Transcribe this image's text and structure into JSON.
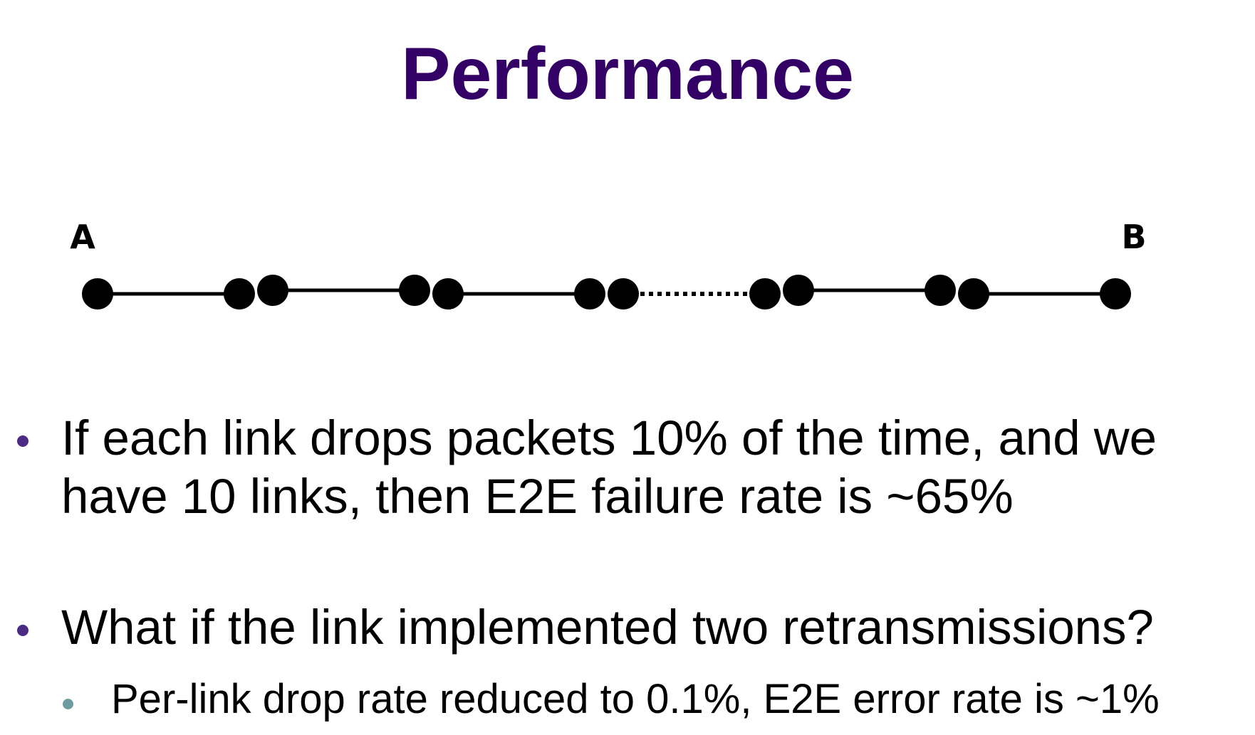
{
  "slide": {
    "title": "Performance",
    "title_color": "#330066",
    "diagram": {
      "start_label": "A",
      "end_label": "B",
      "node_color": "#000000",
      "link_color": "#000000"
    },
    "bullets": [
      {
        "text": "If each link drops packets 10% of the time, and we\nhave 10 links, then E2E failure rate is ~65%",
        "bullet_color": "#4b2a84"
      },
      {
        "text": "What if the link implemented two retransmissions?",
        "bullet_color": "#4b2a84"
      }
    ],
    "sub_bullets": [
      {
        "text": "Per-link drop rate reduced to 0.1%, E2E error rate is ~1%",
        "bullet_color": "#6e9aa0"
      }
    ]
  }
}
